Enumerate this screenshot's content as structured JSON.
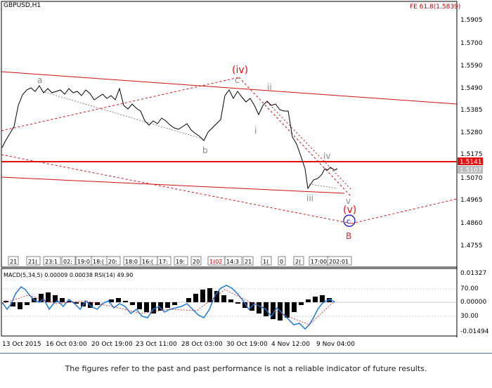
{
  "window": {
    "symbol": "GBPUSD,H1",
    "fib_label": "FE 61.8(1.5839)"
  },
  "colors": {
    "line": "#d01010",
    "price": "#000000",
    "macd": "#1e78d8",
    "accent_red": "#e01010",
    "wave_c": "#0000cc"
  },
  "price_axis": {
    "ticks": [
      "1.5905",
      "1.5700",
      "1.5590",
      "1.5490",
      "1.5385",
      "1.5280",
      "1.5175",
      "1.5070",
      "1.4965",
      "1.4860",
      "1.4755"
    ],
    "current_price": "1.5141",
    "bid_label": "1.5107"
  },
  "wave_labels": {
    "a": "a",
    "b": "b",
    "c": "c",
    "iv_big": "(iv)",
    "i": "i",
    "ii": "ii",
    "iii": "iii",
    "iv": "iv",
    "v": "v",
    "v_big": "(v)",
    "c_circle": "c",
    "B": "B"
  },
  "time_markers": [
    "21",
    "21(",
    "23:1",
    "02:",
    "19:0",
    "18:(",
    "20:",
    "18:0",
    "16:(",
    "17:",
    "19:",
    "20",
    "1(02",
    "14:3",
    "21",
    "1(",
    "0",
    "2(",
    "17:00",
    "202:01"
  ],
  "macd": {
    "title": "MACD(5,34,5) 0.00009 0.00038 RSI(14) 49.90",
    "ticks": [
      "0.01327",
      "70.00",
      "0.00000",
      "30.00",
      "-0.01494"
    ]
  },
  "time_axis": [
    "13 Oct 2015",
    "16 Oct 03:00",
    "20 Oct 19:00",
    "23 Oct 11:00",
    "28 Oct 03:00",
    "30 Oct 19:00",
    "4 Nov 12:00",
    "9 Nov 04:00"
  ],
  "disclaimer": "The figures refer to the past and past performance is not a reliable indicator of future results."
}
